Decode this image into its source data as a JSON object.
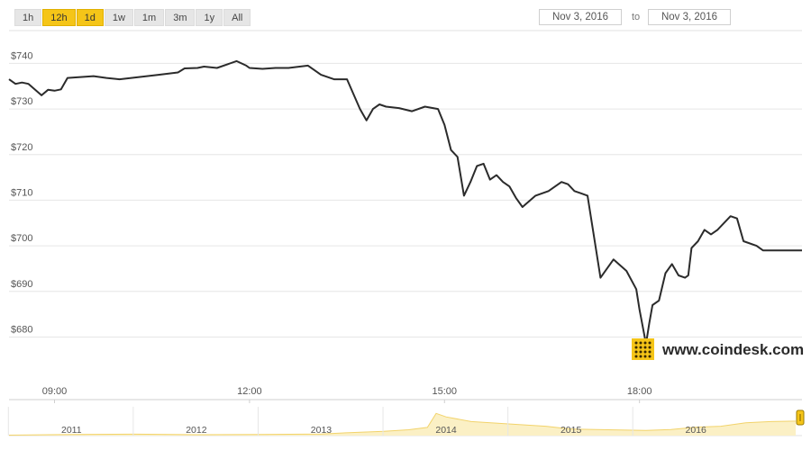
{
  "range_buttons": [
    {
      "label": "1h",
      "active": false
    },
    {
      "label": "12h",
      "active": true
    },
    {
      "label": "1d",
      "active": true
    },
    {
      "label": "1w",
      "active": false
    },
    {
      "label": "1m",
      "active": false
    },
    {
      "label": "3m",
      "active": false
    },
    {
      "label": "1y",
      "active": false
    },
    {
      "label": "All",
      "active": false
    }
  ],
  "date_from": "Nov 3, 2016",
  "date_to": "Nov 3, 2016",
  "to_label": "to",
  "brand": {
    "text": "www.coindesk.com",
    "accent": "#f5c518"
  },
  "colors": {
    "line": "#2b2b2b",
    "navigator_fill": "#fbf0c5",
    "navigator_line": "#f2d36b",
    "handle": "#f5c518"
  },
  "chart_data": {
    "type": "line",
    "ylabel_ticks": [
      "$680",
      "$690",
      "$700",
      "$710",
      "$720",
      "$730",
      "$740"
    ],
    "ylim": [
      672,
      746
    ],
    "x_ticks": [
      "09:00",
      "12:00",
      "15:00",
      "18:00"
    ],
    "x_tick_hours": [
      9,
      12,
      15,
      18
    ],
    "xlim": [
      8.3,
      20.5
    ],
    "grid": true,
    "series": [
      {
        "x": [
          8.3,
          8.4,
          8.5,
          8.6,
          8.8,
          8.9,
          9.0,
          9.1,
          9.2,
          9.4,
          9.6,
          9.8,
          10.0,
          10.3,
          10.6,
          10.9,
          11.0,
          11.2,
          11.3,
          11.5,
          11.8,
          11.95,
          12.0,
          12.2,
          12.4,
          12.6,
          12.9,
          13.1,
          13.3,
          13.5,
          13.7,
          13.8,
          13.9,
          14.0,
          14.1,
          14.3,
          14.5,
          14.7,
          14.9,
          15.0,
          15.1,
          15.2,
          15.3,
          15.4,
          15.5,
          15.6,
          15.7,
          15.8,
          15.9,
          16.0,
          16.1,
          16.2,
          16.4,
          16.6,
          16.8,
          16.9,
          17.0,
          17.1,
          17.2,
          17.4,
          17.6,
          17.8,
          17.95,
          18.0,
          18.1,
          18.15,
          18.2,
          18.3,
          18.4,
          18.5,
          18.6,
          18.7,
          18.75,
          18.8,
          18.9,
          19.0,
          19.1,
          19.2,
          19.4,
          19.5,
          19.6,
          19.8,
          19.9,
          20.1,
          20.2,
          20.3,
          20.4,
          20.5
        ],
        "y": [
          736.5,
          735.5,
          735.8,
          735.5,
          733.0,
          734.2,
          734.0,
          734.3,
          736.8,
          737.0,
          737.2,
          736.8,
          736.5,
          737.0,
          737.5,
          738.0,
          738.9,
          739.0,
          739.3,
          739.0,
          740.5,
          739.5,
          739.0,
          738.8,
          739.0,
          739.0,
          739.5,
          737.5,
          736.5,
          736.5,
          730.0,
          727.5,
          730.0,
          731.0,
          730.5,
          730.2,
          729.5,
          730.5,
          730.0,
          726.5,
          721.0,
          719.5,
          711.0,
          714.0,
          717.5,
          718.0,
          714.5,
          715.5,
          714.0,
          713.0,
          710.5,
          708.5,
          711.0,
          712.0,
          714.0,
          713.5,
          712.0,
          711.5,
          711.0,
          693.0,
          697.0,
          694.5,
          690.5,
          686.0,
          678.5,
          683.0,
          687.0,
          688.0,
          694.0,
          696.0,
          693.5,
          693.0,
          693.5,
          699.5,
          701.0,
          703.5,
          702.5,
          703.5,
          706.5,
          706.0,
          701.0,
          700.0,
          699.0,
          699.0,
          699.0,
          699.0,
          699.0,
          699.0
        ]
      }
    ]
  },
  "navigator": {
    "year_labels": [
      "2011",
      "2012",
      "2013",
      "2014",
      "2015",
      "2016"
    ],
    "year_positions": [
      2011,
      2012,
      2013,
      2014,
      2015,
      2016
    ],
    "year_range": [
      2010.5,
      2016.85
    ],
    "series_t": [
      2010.5,
      2011.0,
      2011.5,
      2012.0,
      2012.5,
      2013.0,
      2013.2,
      2013.5,
      2013.7,
      2013.85,
      2013.92,
      2014.0,
      2014.2,
      2014.5,
      2014.8,
      2015.0,
      2015.3,
      2015.6,
      2015.8,
      2016.0,
      2016.2,
      2016.4,
      2016.6,
      2016.8
    ],
    "series_v": [
      0.02,
      0.05,
      0.06,
      0.04,
      0.05,
      0.07,
      0.12,
      0.18,
      0.25,
      0.35,
      0.95,
      0.8,
      0.6,
      0.5,
      0.4,
      0.28,
      0.25,
      0.22,
      0.26,
      0.36,
      0.4,
      0.55,
      0.6,
      0.62
    ]
  }
}
